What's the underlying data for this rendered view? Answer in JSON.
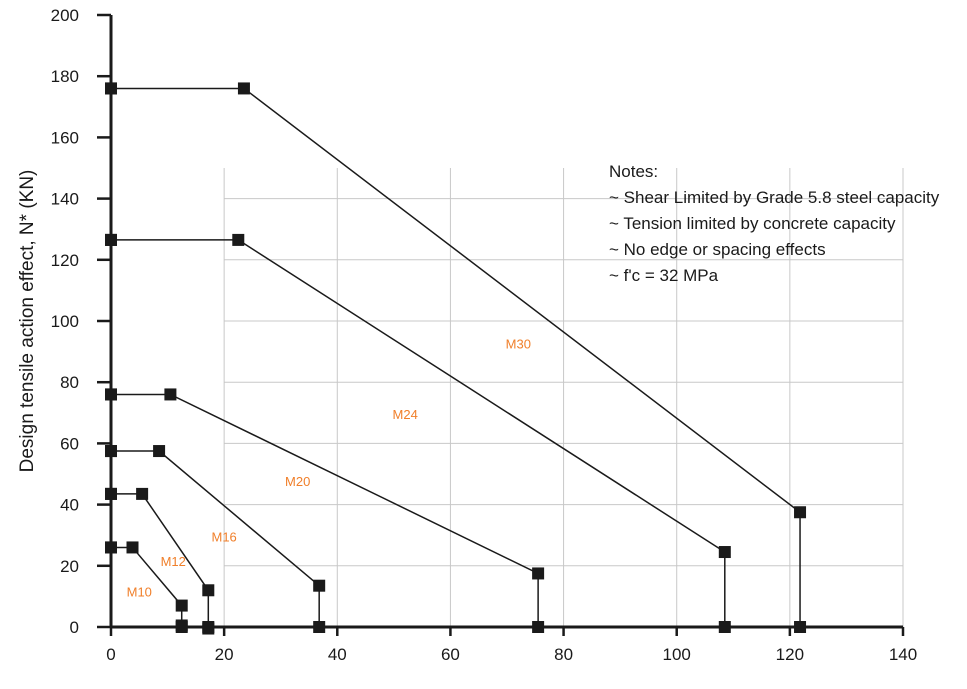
{
  "chart_data": {
    "type": "line",
    "title": "",
    "xlabel": "",
    "ylabel": "Design tensile action effect, N* (KN)",
    "xlim": [
      0,
      140
    ],
    "ylim": [
      0,
      200
    ],
    "x_ticks": [
      "0",
      "20",
      "40",
      "60",
      "80",
      "100",
      "120",
      "140"
    ],
    "y_ticks": [
      "0",
      "20",
      "40",
      "60",
      "80",
      "100",
      "120",
      "140",
      "160",
      "180",
      "200"
    ],
    "grid": true,
    "legend": "none",
    "line_color": "#1a1a1a",
    "label_color": "#f07f2a",
    "grid_color": "#c8c8c8",
    "notes": [
      "Notes:",
      "~ Shear Limited by Grade 5.8 steel capacity",
      "~ Tension limited by concrete capacity",
      "~ No edge or spacing effects",
      "~ f'c = 32 MPa"
    ],
    "series": [
      {
        "name": "M10",
        "x": [
          0,
          3.8,
          12.5,
          12.5
        ],
        "y": [
          26,
          26,
          7,
          0
        ]
      },
      {
        "name": "M12",
        "x": [
          0,
          5.5,
          17.2,
          17.2
        ],
        "y": [
          43.5,
          43.5,
          12,
          0
        ]
      },
      {
        "name": "M16",
        "x": [
          0,
          8.5,
          36.8,
          36.8
        ],
        "y": [
          57.5,
          57.5,
          13.5,
          0
        ]
      },
      {
        "name": "M20",
        "x": [
          0,
          10.5,
          75.5,
          75.5
        ],
        "y": [
          76,
          76,
          17.5,
          0
        ]
      },
      {
        "name": "M24",
        "x": [
          0,
          22.5,
          108.5,
          108.5
        ],
        "y": [
          126.5,
          126.5,
          24.5,
          0
        ]
      },
      {
        "name": "M30",
        "x": [
          0,
          23.5,
          121.8,
          121.8
        ],
        "y": [
          176,
          176,
          37.5,
          0
        ]
      }
    ],
    "extra_points": [
      [
        0,
        176
      ],
      [
        0,
        126.5
      ],
      [
        0,
        76
      ],
      [
        0,
        57.5
      ],
      [
        0,
        43.5
      ],
      [
        0,
        26
      ],
      [
        12.5,
        0.5
      ],
      [
        17.2,
        -0.5
      ]
    ],
    "series_labels": [
      {
        "text": "M10",
        "x": 5,
        "y": 10
      },
      {
        "text": "M12",
        "x": 11,
        "y": 20
      },
      {
        "text": "M16",
        "x": 20,
        "y": 28
      },
      {
        "text": "M20",
        "x": 33,
        "y": 46
      },
      {
        "text": "M24",
        "x": 52,
        "y": 68
      },
      {
        "text": "M30",
        "x": 72,
        "y": 91
      }
    ]
  }
}
